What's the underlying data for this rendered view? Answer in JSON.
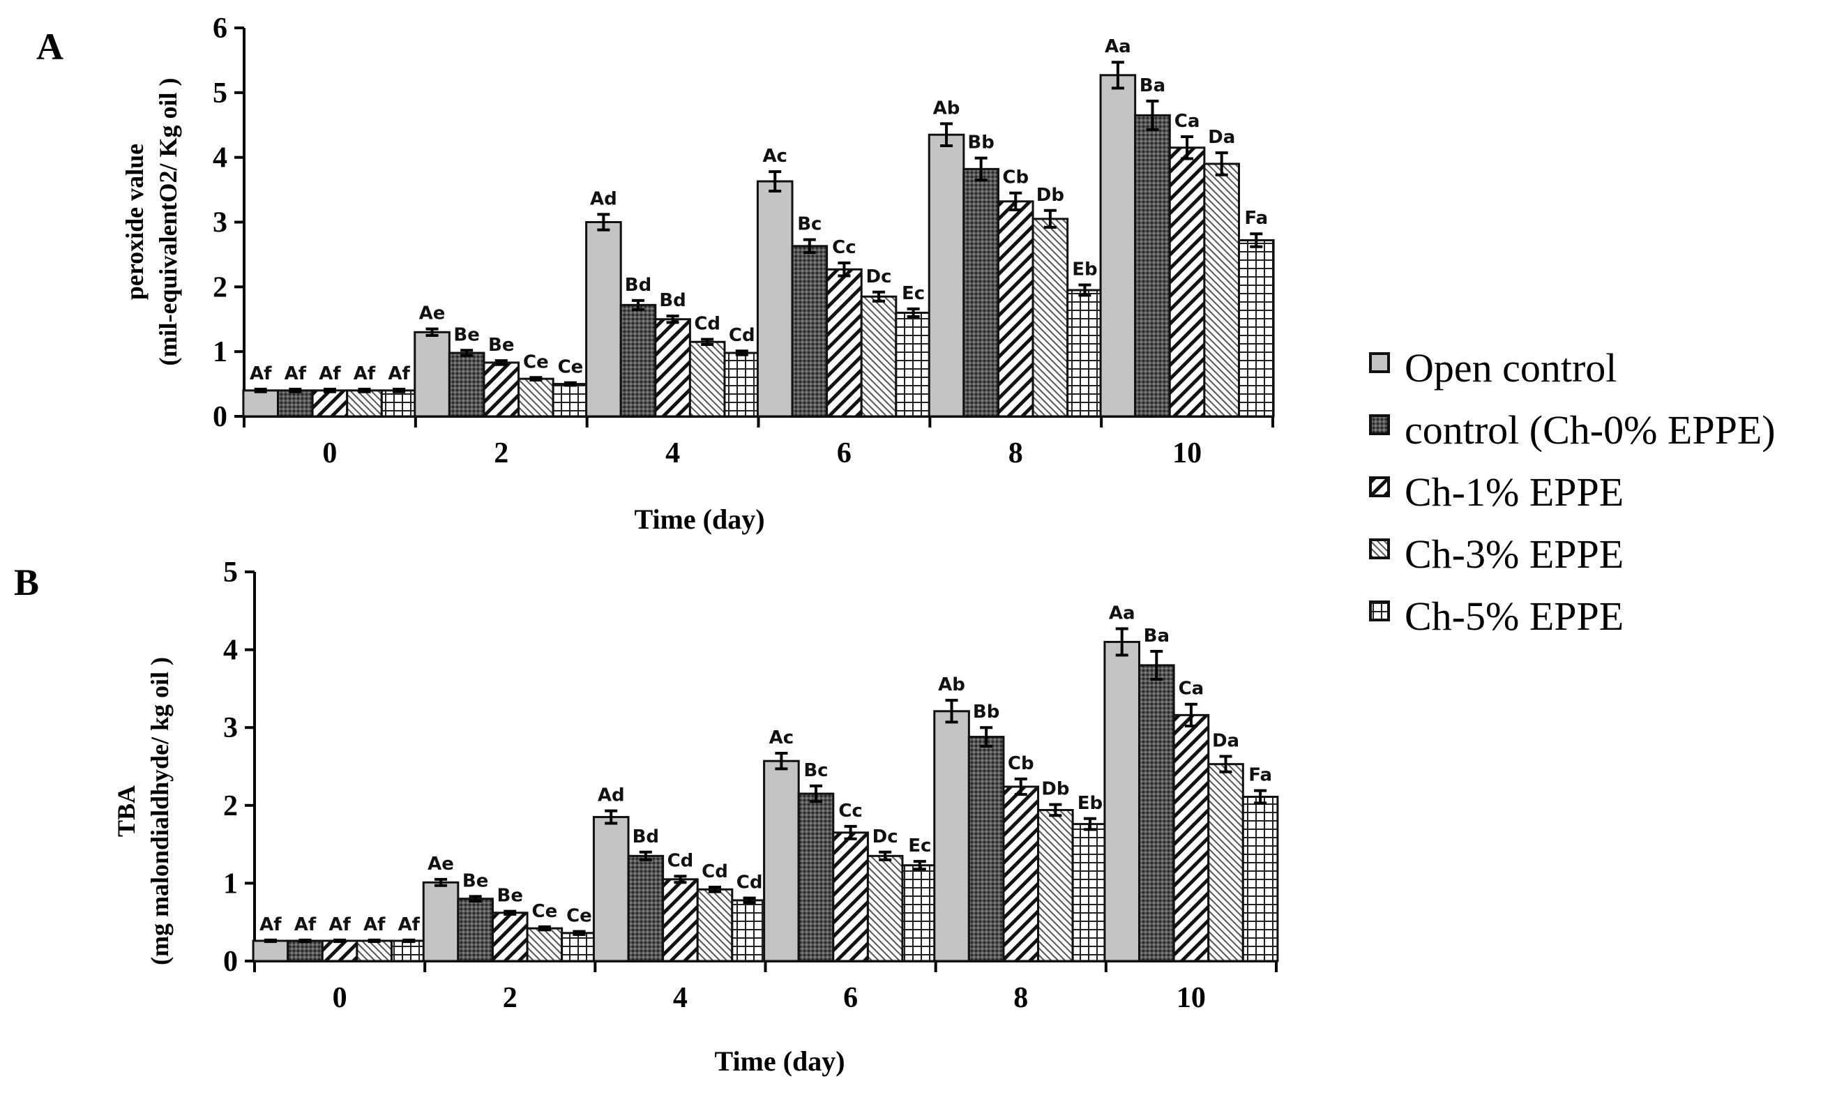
{
  "figure": {
    "legend": {
      "entries": [
        "Open control",
        "control (Ch-0% EPPE)",
        "Ch-1% EPPE",
        "Ch-3% EPPE",
        "Ch-5% EPPE"
      ],
      "position": "right-middle"
    },
    "series_style": [
      {
        "fill": "#c4c4c4",
        "pattern": "solid"
      },
      {
        "fill": "#5a5a5a",
        "pattern": "dots"
      },
      {
        "fill": "#ffffff",
        "pattern": "diagonal-hatch"
      },
      {
        "fill": "#ffffff",
        "pattern": "dense-diagonal"
      },
      {
        "fill": "#ffffff",
        "pattern": "grid"
      }
    ],
    "colors": {
      "axis": "#000000",
      "stroke": "#222222"
    }
  },
  "chart_data": [
    {
      "type": "bar",
      "panel": "A",
      "title": "",
      "xlabel": "Time (day)",
      "ylabel": "peroxide value",
      "ylabel2": "(mil-equivalentO2/ Kg oil )",
      "ylim": [
        0,
        6
      ],
      "yticks": [
        "0",
        "1",
        "2",
        "3",
        "4",
        "5",
        "6"
      ],
      "categories": [
        "0",
        "2",
        "4",
        "6",
        "8",
        "10"
      ],
      "series": [
        {
          "name": "Open control",
          "values": [
            0.4,
            1.3,
            3.0,
            3.63,
            4.35,
            5.27
          ],
          "errors": [
            0.02,
            0.05,
            0.12,
            0.15,
            0.17,
            0.2
          ],
          "labels": [
            "Af",
            "Ae",
            "Ad",
            "Ac",
            "Ab",
            "Aa"
          ]
        },
        {
          "name": "control (Ch-0% EPPE)",
          "values": [
            0.4,
            0.98,
            1.72,
            2.63,
            3.82,
            4.65
          ],
          "errors": [
            0.02,
            0.04,
            0.07,
            0.1,
            0.17,
            0.22
          ],
          "labels": [
            "Af",
            "Be",
            "Bd",
            "Bc",
            "Bb",
            "Ba"
          ]
        },
        {
          "name": "Ch-1% EPPE",
          "values": [
            0.4,
            0.83,
            1.5,
            2.27,
            3.32,
            4.15
          ],
          "errors": [
            0.02,
            0.03,
            0.05,
            0.1,
            0.13,
            0.17
          ],
          "labels": [
            "Af",
            "Be",
            "Bd",
            "Cc",
            "Cb",
            "Ca"
          ]
        },
        {
          "name": "Ch-3% EPPE",
          "values": [
            0.4,
            0.58,
            1.15,
            1.85,
            3.05,
            3.9
          ],
          "errors": [
            0.02,
            0.02,
            0.04,
            0.07,
            0.13,
            0.17
          ],
          "labels": [
            "Af",
            "Ce",
            "Cd",
            "Dc",
            "Db",
            "Da"
          ]
        },
        {
          "name": "Ch-5% EPPE",
          "values": [
            0.4,
            0.5,
            0.98,
            1.6,
            1.95,
            2.72
          ],
          "errors": [
            0.02,
            0.02,
            0.03,
            0.06,
            0.08,
            0.1
          ],
          "labels": [
            "Af",
            "Ce",
            "Cd",
            "Ec",
            "Eb",
            "Fa"
          ]
        }
      ]
    },
    {
      "type": "bar",
      "panel": "B",
      "title": "",
      "xlabel": "Time (day)",
      "ylabel": "TBA",
      "ylabel2": "(mg malondialdhyde/ kg oil )",
      "ylim": [
        0,
        5
      ],
      "yticks": [
        "0",
        "1",
        "2",
        "3",
        "4",
        "5"
      ],
      "categories": [
        "0",
        "2",
        "4",
        "6",
        "8",
        "10"
      ],
      "series": [
        {
          "name": "Open control",
          "values": [
            0.26,
            1.01,
            1.85,
            2.57,
            3.21,
            4.1
          ],
          "errors": [
            0.01,
            0.04,
            0.08,
            0.1,
            0.14,
            0.17
          ],
          "labels": [
            "Af",
            "Ae",
            "Ad",
            "Ac",
            "Ab",
            "Aa"
          ]
        },
        {
          "name": "control (Ch-0% EPPE)",
          "values": [
            0.26,
            0.8,
            1.35,
            2.15,
            2.88,
            3.8
          ],
          "errors": [
            0.01,
            0.03,
            0.05,
            0.1,
            0.12,
            0.18
          ],
          "labels": [
            "Af",
            "Be",
            "Bd",
            "Bc",
            "Bb",
            "Ba"
          ]
        },
        {
          "name": "Ch-1% EPPE",
          "values": [
            0.26,
            0.62,
            1.05,
            1.65,
            2.24,
            3.16
          ],
          "errors": [
            0.01,
            0.02,
            0.04,
            0.08,
            0.1,
            0.14
          ],
          "labels": [
            "Af",
            "Be",
            "Cd",
            "Cc",
            "Cb",
            "Ca"
          ]
        },
        {
          "name": "Ch-3% EPPE",
          "values": [
            0.26,
            0.42,
            0.92,
            1.35,
            1.94,
            2.53
          ],
          "errors": [
            0.01,
            0.02,
            0.03,
            0.05,
            0.07,
            0.1
          ],
          "labels": [
            "Af",
            "Ce",
            "Cd",
            "Dc",
            "Db",
            "Da"
          ]
        },
        {
          "name": "Ch-5% EPPE",
          "values": [
            0.26,
            0.36,
            0.78,
            1.23,
            1.76,
            2.11
          ],
          "errors": [
            0.01,
            0.02,
            0.03,
            0.05,
            0.07,
            0.08
          ],
          "labels": [
            "Af",
            "Ce",
            "Cd",
            "Ec",
            "Eb",
            "Fa"
          ]
        }
      ]
    }
  ]
}
